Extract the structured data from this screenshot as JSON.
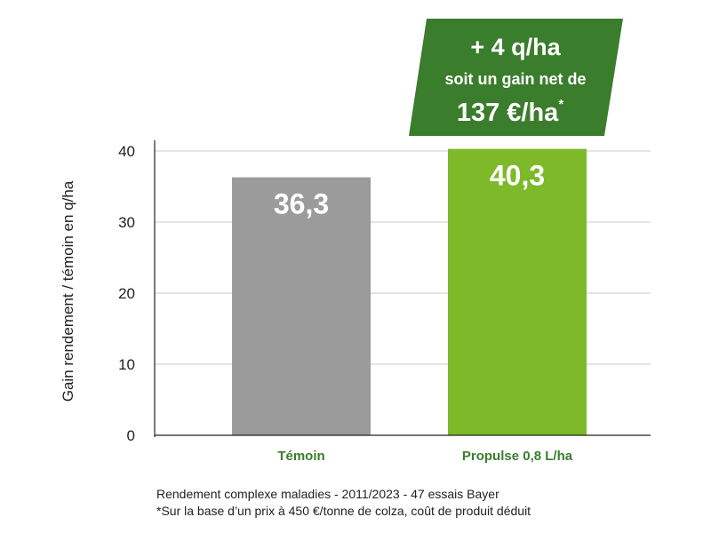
{
  "chart_data": {
    "type": "bar",
    "categories": [
      "Témoin",
      "Propulse 0,8 L/ha"
    ],
    "values": [
      36.3,
      40.3
    ],
    "value_labels": [
      "36,3",
      "40,3"
    ],
    "colors": [
      "#9b9b9b",
      "#7db928"
    ],
    "ylabel": "Gain rendement / témoin en q/ha",
    "ylim": [
      0,
      40
    ],
    "yticks": [
      0,
      10,
      20,
      30,
      40
    ],
    "grid": true
  },
  "banner": {
    "line1": "+ 4 q/ha",
    "line2": "soit un gain net de",
    "line3": "137 €/ha",
    "line3_sup": "*",
    "color": "#3a7d2c"
  },
  "footnotes": {
    "line1": "Rendement complexe maladies - 2011/2023 - 47 essais Bayer",
    "line2": "*Sur la base d’un prix à 450 €/tonne de colza, coût de produit déduit"
  }
}
